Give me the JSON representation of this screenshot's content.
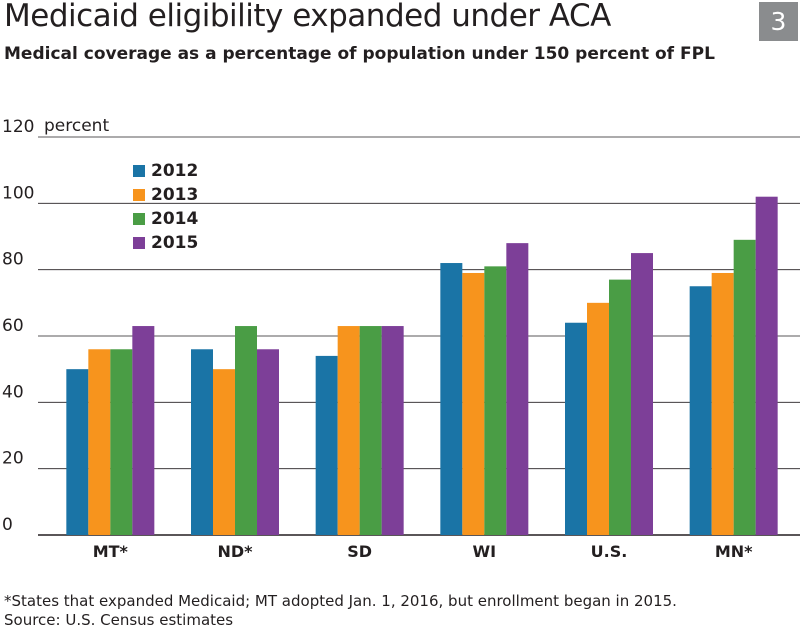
{
  "figure_number": "3",
  "chart_data": {
    "type": "bar",
    "title": "Medicaid eligibility expanded under ACA",
    "subtitle": "Medical coverage as a percentage of population under 150 percent of FPL",
    "ylabel": "percent",
    "ylim": [
      0,
      120
    ],
    "yticks": [
      "0",
      "20",
      "40",
      "60",
      "80",
      "100",
      "120"
    ],
    "grid": true,
    "legend_position": "top-left",
    "categories": [
      "MT*",
      "ND*",
      "SD",
      "WI",
      "U.S.",
      "MN*"
    ],
    "series": [
      {
        "name": "2012",
        "color": "#1a74a6",
        "values": [
          50,
          56,
          54,
          82,
          64,
          75
        ]
      },
      {
        "name": "2013",
        "color": "#f7941d",
        "values": [
          56,
          50,
          63,
          79,
          70,
          79
        ]
      },
      {
        "name": "2014",
        "color": "#4a9d45",
        "values": [
          56,
          63,
          63,
          81,
          77,
          89
        ]
      },
      {
        "name": "2015",
        "color": "#7d3f98",
        "values": [
          63,
          56,
          63,
          88,
          85,
          102
        ]
      }
    ]
  },
  "footnote": "*States that expanded Medicaid; MT adopted Jan. 1, 2016, but enrollment began in 2015.",
  "source": "Source: U.S. Census estimates"
}
